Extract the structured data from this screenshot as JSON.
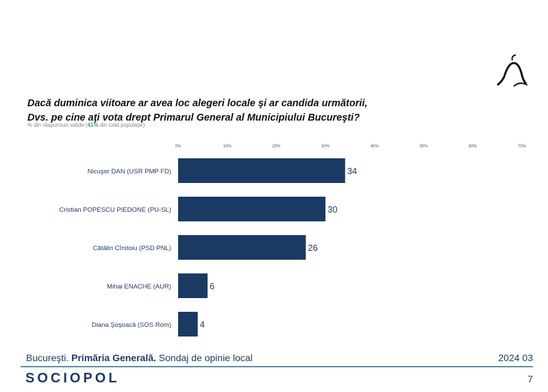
{
  "logo_name": "thinker silhouette",
  "chart_data": {
    "type": "bar",
    "orientation": "horizontal",
    "title_line1": "Dacă duminica viitoare ar avea loc alegeri locale şi ar candida următorii,",
    "title_line2": "Dvs. pe cine aţi vota drept Primarul General al Municipiului Bucureşti?",
    "subtitle_pre": "% din răspunsuri valide (",
    "subtitle_highlight": "41%",
    "subtitle_post": " din total populaţie)",
    "categories": [
      "Nicuşor DAN (USR PMP FD)",
      "Cristian POPESCU PIEDONE (PU-SL)",
      "Cătălin Cîrstoiu (PSD PNL)",
      "Mihai ENACHE (AUR)",
      "Diana Şoşoacă (SOS Rom)"
    ],
    "values": [
      34,
      30,
      26,
      6,
      4
    ],
    "xlim": [
      0,
      70
    ],
    "xticks": [
      "0%",
      "10%",
      "20%",
      "30%",
      "40%",
      "50%",
      "60%",
      "70%"
    ],
    "grid": false,
    "bar_color": "#1b3a63",
    "highlight_color": "#2a9a8c"
  },
  "footer": {
    "city": "Bucureşti.",
    "section": "Primăria Generală.",
    "desc": "Sondaj de opinie local",
    "date": "2024 03",
    "brand": "SOCIOPOL",
    "page": "7"
  }
}
